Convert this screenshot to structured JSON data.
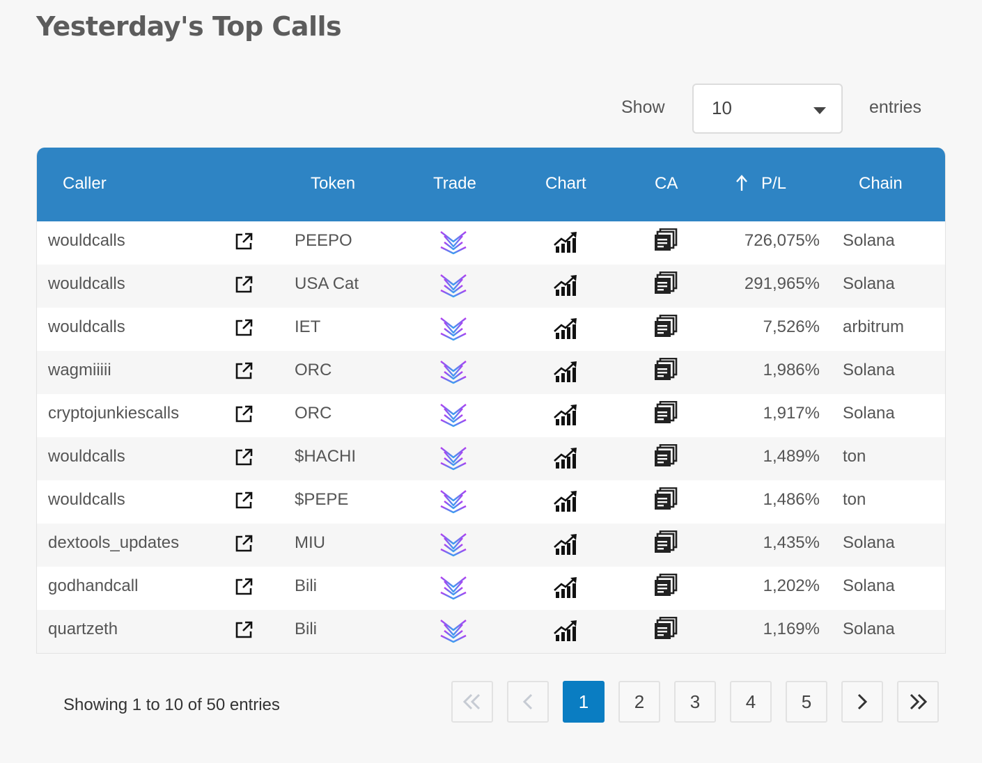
{
  "title": "Yesterday's Top Calls",
  "length_menu": {
    "show_label": "Show",
    "selected": "10",
    "entries_label": "entries"
  },
  "table": {
    "headers": {
      "caller": "Caller",
      "token": "Token",
      "trade": "Trade",
      "chart": "Chart",
      "ca": "CA",
      "pl": "P/L",
      "chain": "Chain"
    },
    "sorted_column": "pl",
    "sort_direction": "ascending-arrow",
    "icons": {
      "external_link": "external-link-icon",
      "trade": "trade-logo-icon",
      "chart": "chart-growth-icon",
      "ca": "copy-contract-icon"
    },
    "rows": [
      {
        "caller": "wouldcalls",
        "token": "PEEPO",
        "pl": "726,075%",
        "chain": "Solana"
      },
      {
        "caller": "wouldcalls",
        "token": "USA Cat",
        "pl": "291,965%",
        "chain": "Solana"
      },
      {
        "caller": "wouldcalls",
        "token": "IET",
        "pl": "7,526%",
        "chain": "arbitrum"
      },
      {
        "caller": "wagmiiiii",
        "token": "ORC",
        "pl": "1,986%",
        "chain": "Solana"
      },
      {
        "caller": "cryptojunkiescalls",
        "token": "ORC",
        "pl": "1,917%",
        "chain": "Solana"
      },
      {
        "caller": "wouldcalls",
        "token": "$HACHI",
        "pl": "1,489%",
        "chain": "ton"
      },
      {
        "caller": "wouldcalls",
        "token": "$PEPE",
        "pl": "1,486%",
        "chain": "ton"
      },
      {
        "caller": "dextools_updates",
        "token": "MIU",
        "pl": "1,435%",
        "chain": "Solana"
      },
      {
        "caller": "godhandcall",
        "token": "Bili",
        "pl": "1,202%",
        "chain": "Solana"
      },
      {
        "caller": "quartzeth",
        "token": "Bili",
        "pl": "1,169%",
        "chain": "Solana"
      }
    ]
  },
  "info": "Showing 1 to 10 of 50 entries",
  "pagination": {
    "first_icon": "double-chevron-left-icon",
    "prev_icon": "chevron-left-icon",
    "pages": [
      "1",
      "2",
      "3",
      "4",
      "5"
    ],
    "current": "1",
    "next_icon": "chevron-right-icon",
    "last_icon": "double-chevron-right-icon"
  },
  "colors": {
    "header_bg": "#2e84c4",
    "active_page": "#0a7dc2",
    "trade_gradient_start": "#b33cf0",
    "trade_gradient_end": "#3aa0f0"
  }
}
